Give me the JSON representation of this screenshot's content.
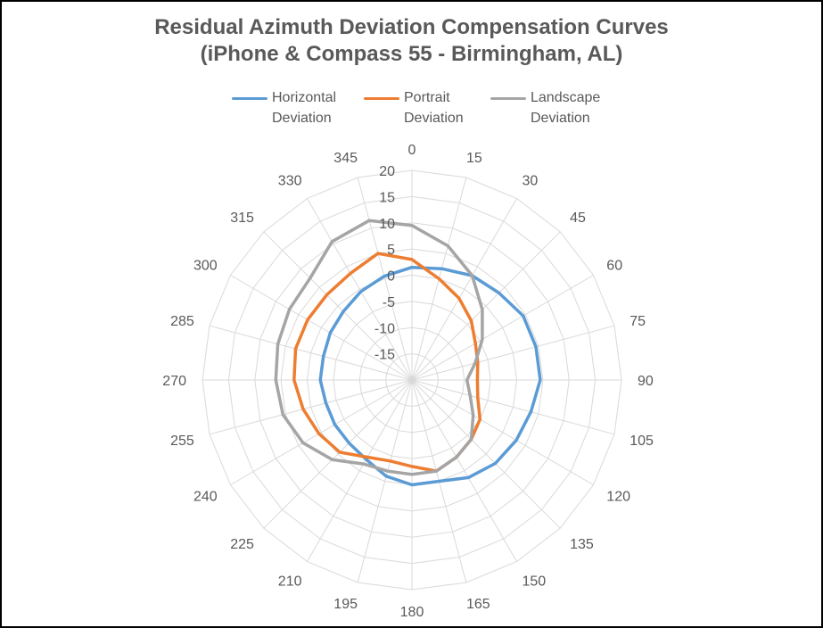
{
  "chart_data": {
    "type": "radar",
    "title_line1": "Residual Azimuth Deviation Compensation Curves",
    "title_line2": "(iPhone & Compass 55 - Birmingham, AL)",
    "legend_placement": "top",
    "categories": [
      "0",
      "15",
      "30",
      "45",
      "60",
      "75",
      "90",
      "105",
      "120",
      "135",
      "150",
      "165",
      "180",
      "195",
      "210",
      "225",
      "240",
      "255",
      "270",
      "285",
      "300",
      "315",
      "330",
      "345"
    ],
    "radial_ticks": [
      "-15",
      "-10",
      "-5",
      "0",
      "5",
      "10",
      "15",
      "20"
    ],
    "r_range": [
      -20,
      20
    ],
    "series": [
      {
        "name_line1": "Horizontal",
        "name_line2": "Deviation",
        "color": "#5B9BD5",
        "values": [
          1.5,
          2,
          3,
          3.5,
          4.5,
          4.5,
          4.5,
          3.5,
          3,
          2.5,
          1.5,
          0,
          0,
          -1,
          -2.5,
          -3,
          -3,
          -3,
          -2.5,
          -2.5,
          -2,
          -1.5,
          -0.5,
          0.5
        ]
      },
      {
        "name_line1": "Portrait",
        "name_line2": "Deviation",
        "color": "#ED7D31",
        "values": [
          3,
          0,
          -2,
          -4,
          -6,
          -7,
          -7.5,
          -7,
          -5,
          -4,
          -3,
          -2,
          -3.5,
          -4,
          -3,
          -0.5,
          0.5,
          1.5,
          2.5,
          3,
          3,
          3,
          3.5,
          5
        ]
      },
      {
        "name_line1": "Landscape",
        "name_line2": "Deviation",
        "color": "#A5A5A5",
        "values": [
          9.5,
          6.5,
          3,
          -1,
          -4.5,
          -7.5,
          -9.5,
          -8.5,
          -6.5,
          -4,
          -3,
          -2,
          -2,
          -2,
          -1.5,
          1.5,
          4,
          5.5,
          6,
          6.5,
          7,
          7.5,
          10.5,
          11.5
        ]
      }
    ]
  }
}
